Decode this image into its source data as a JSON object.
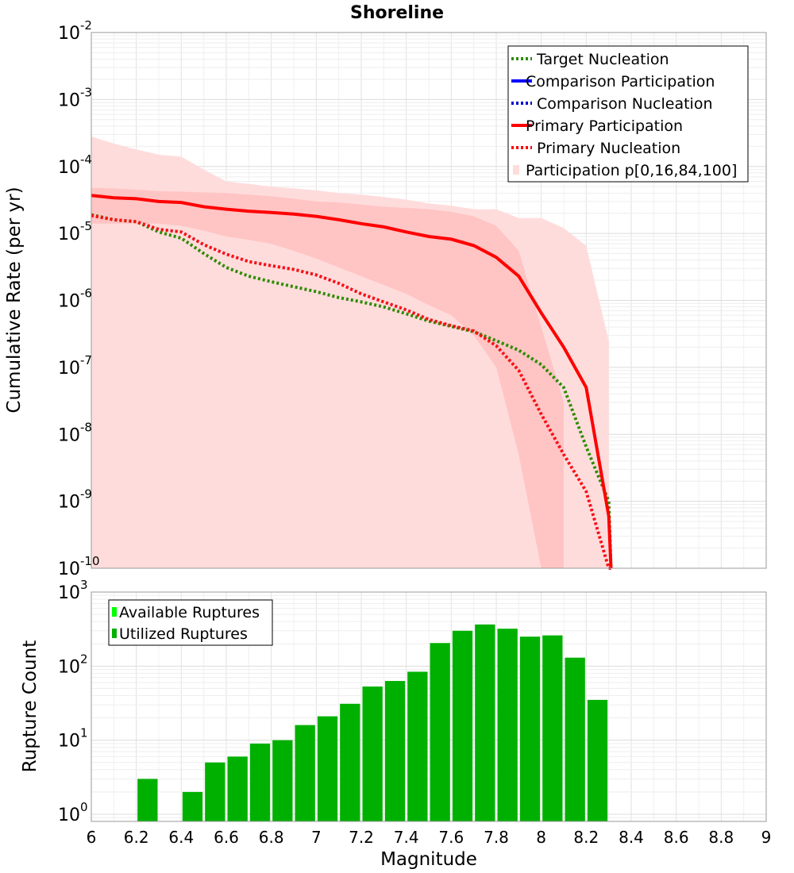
{
  "chart_data": [
    {
      "type": "line",
      "title": "Shoreline",
      "xlabel": "",
      "ylabel": "Cumulative Rate (per yr)",
      "yscale": "log",
      "xlim": [
        6,
        9
      ],
      "ylim": [
        1e-10,
        0.01
      ],
      "y_tick_exponents": [
        -2,
        -3,
        -4,
        -5,
        -6,
        -7,
        -8,
        -9,
        -10
      ],
      "legend": [
        {
          "label": "Target Nucleation",
          "color": "#2e8b00",
          "style": "dotted"
        },
        {
          "label": "Comparison Participation",
          "color": "#0000ff",
          "style": "solid"
        },
        {
          "label": "Comparison Nucleation",
          "color": "#0000cc",
          "style": "dotted"
        },
        {
          "label": "Primary Participation",
          "color": "#ff0000",
          "style": "solid"
        },
        {
          "label": "Primary Nucleation",
          "color": "#ff0000",
          "style": "dotted"
        },
        {
          "label": "Participation p[0,16,84,100]",
          "color": "#ffdcdc",
          "style": "band"
        }
      ],
      "legend_position": "top-right",
      "series": [
        {
          "name": "Target Nucleation",
          "x": [
            6.0,
            6.1,
            6.2,
            6.3,
            6.4,
            6.5,
            6.6,
            6.7,
            6.8,
            6.9,
            7.0,
            7.1,
            7.2,
            7.3,
            7.4,
            7.5,
            7.6,
            7.7,
            7.8,
            7.9,
            8.0,
            8.1,
            8.2,
            8.3,
            8.31
          ],
          "y": [
            1.9e-05,
            1.6e-05,
            1.5e-05,
            1.05e-05,
            8.5e-06,
            5e-06,
            3.1e-06,
            2.3e-06,
            1.9e-06,
            1.6e-06,
            1.35e-06,
            1.1e-06,
            9.5e-07,
            8e-07,
            6.3e-07,
            4.9e-07,
            4.1e-07,
            3.4e-07,
            2.5e-07,
            1.8e-07,
            1.1e-07,
            5e-08,
            6.5e-09,
            1e-09,
            5e-11
          ]
        },
        {
          "name": "Comparison Participation",
          "x": [
            6.0,
            6.1,
            6.2,
            6.3,
            6.4,
            6.5,
            6.6,
            6.7,
            6.8,
            6.9,
            7.0,
            7.1,
            7.2,
            7.3,
            7.4,
            7.5,
            7.6,
            7.7,
            7.8,
            7.9,
            8.0,
            8.1,
            8.2,
            8.3,
            8.31
          ],
          "y": [
            3.7e-05,
            3.4e-05,
            3.3e-05,
            3e-05,
            2.9e-05,
            2.5e-05,
            2.3e-05,
            2.15e-05,
            2.05e-05,
            1.95e-05,
            1.8e-05,
            1.6e-05,
            1.4e-05,
            1.25e-05,
            1.05e-05,
            9e-06,
            8.2e-06,
            6.6e-06,
            4.4e-06,
            2.3e-06,
            6.5e-07,
            2e-07,
            5e-08,
            6e-10,
            5e-11
          ]
        },
        {
          "name": "Comparison Nucleation",
          "x": [
            6.0,
            6.1,
            6.2,
            6.3,
            6.4,
            6.5,
            6.6,
            6.7,
            6.8,
            6.9,
            7.0,
            7.1,
            7.2,
            7.3,
            7.4,
            7.5,
            7.6,
            7.7,
            7.8,
            7.9,
            8.0,
            8.1,
            8.2,
            8.3,
            8.31
          ],
          "y": [
            1.85e-05,
            1.6e-05,
            1.5e-05,
            1.15e-05,
            1.05e-05,
            6.8e-06,
            4.9e-06,
            3.8e-06,
            3.3e-06,
            2.9e-06,
            2.4e-06,
            1.8e-06,
            1.25e-06,
            9.5e-07,
            7.2e-07,
            5.2e-07,
            4.2e-07,
            3.5e-07,
            2.1e-07,
            9e-08,
            2e-08,
            5e-09,
            1.4e-09,
            5e-11,
            5e-11
          ]
        },
        {
          "name": "Primary Participation",
          "x": [
            6.0,
            6.1,
            6.2,
            6.3,
            6.4,
            6.5,
            6.6,
            6.7,
            6.8,
            6.9,
            7.0,
            7.1,
            7.2,
            7.3,
            7.4,
            7.5,
            7.6,
            7.7,
            7.8,
            7.9,
            8.0,
            8.1,
            8.2,
            8.3,
            8.31
          ],
          "y": [
            3.7e-05,
            3.4e-05,
            3.3e-05,
            3e-05,
            2.9e-05,
            2.5e-05,
            2.3e-05,
            2.15e-05,
            2.05e-05,
            1.95e-05,
            1.8e-05,
            1.6e-05,
            1.4e-05,
            1.25e-05,
            1.05e-05,
            9e-06,
            8.2e-06,
            6.6e-06,
            4.4e-06,
            2.3e-06,
            6.5e-07,
            2e-07,
            5e-08,
            6e-10,
            5e-11
          ]
        },
        {
          "name": "Primary Nucleation",
          "x": [
            6.0,
            6.1,
            6.2,
            6.3,
            6.4,
            6.5,
            6.6,
            6.7,
            6.8,
            6.9,
            7.0,
            7.1,
            7.2,
            7.3,
            7.4,
            7.5,
            7.6,
            7.7,
            7.8,
            7.9,
            8.0,
            8.1,
            8.2,
            8.3,
            8.31
          ],
          "y": [
            1.85e-05,
            1.6e-05,
            1.5e-05,
            1.15e-05,
            1.05e-05,
            6.8e-06,
            4.9e-06,
            3.8e-06,
            3.3e-06,
            2.9e-06,
            2.4e-06,
            1.8e-06,
            1.25e-06,
            9.5e-07,
            7.2e-07,
            5.2e-07,
            4.2e-07,
            3.5e-07,
            2.1e-07,
            9e-08,
            2e-08,
            5e-09,
            1.4e-09,
            5e-11,
            5e-11
          ]
        }
      ],
      "bands": [
        {
          "name": "Participation p[0,100]",
          "x": [
            6.0,
            6.1,
            6.2,
            6.3,
            6.4,
            6.5,
            6.6,
            6.7,
            6.8,
            6.9,
            7.0,
            7.1,
            7.2,
            7.3,
            7.4,
            7.5,
            7.6,
            7.7,
            7.8,
            7.9,
            8.0,
            8.1,
            8.2,
            8.3
          ],
          "lower": [
            1e-10,
            1e-10,
            1e-10,
            1e-10,
            1e-10,
            1e-10,
            1e-10,
            1e-10,
            1e-10,
            1e-10,
            1e-10,
            1e-10,
            1e-10,
            1e-10,
            1e-10,
            1e-10,
            1e-10,
            1e-10,
            1e-10,
            1e-10,
            1e-10,
            1e-10,
            1e-10,
            1e-10
          ],
          "upper": [
            0.00028,
            0.00022,
            0.00018,
            0.00015,
            0.00014,
            9e-05,
            6e-05,
            5.5e-05,
            5e-05,
            4.7e-05,
            4.4e-05,
            4e-05,
            3.8e-05,
            3.5e-05,
            3.2e-05,
            2.8e-05,
            2.6e-05,
            2.3e-05,
            2.3e-05,
            1.7e-05,
            1.7e-05,
            1.2e-05,
            6.5e-06,
            2.5e-07
          ]
        },
        {
          "name": "Participation p[16,84]",
          "x": [
            6.0,
            6.1,
            6.2,
            6.3,
            6.4,
            6.5,
            6.6,
            6.7,
            6.8,
            6.9,
            7.0,
            7.1,
            7.2,
            7.3,
            7.4,
            7.5,
            7.6,
            7.7,
            7.8,
            7.9,
            8.0,
            8.1
          ],
          "lower": [
            1.4e-05,
            1.4e-05,
            1.4e-05,
            1.4e-05,
            1.3e-05,
            1.1e-05,
            9e-06,
            8e-06,
            7e-06,
            5.5e-06,
            4.2e-06,
            3.1e-06,
            2.3e-06,
            1.7e-06,
            1.25e-06,
            8.5e-07,
            6e-07,
            3e-07,
            1e-07,
            5e-09,
            1e-10,
            1e-10
          ],
          "upper": [
            4.8e-05,
            4.7e-05,
            4.5e-05,
            4.3e-05,
            4.2e-05,
            4.1e-05,
            4e-05,
            3.8e-05,
            3.6e-05,
            3.3e-05,
            3e-05,
            2.9e-05,
            2.7e-05,
            2.5e-05,
            2.4e-05,
            2.3e-05,
            2.1e-05,
            1.8e-05,
            1.3e-05,
            5.5e-06,
            4e-07,
            3e-08
          ]
        }
      ]
    },
    {
      "type": "bar",
      "title": "",
      "xlabel": "Magnitude",
      "ylabel": "Rupture Count",
      "yscale": "log",
      "xlim": [
        6,
        9
      ],
      "ylim": [
        0.8,
        1000
      ],
      "x_ticks": [
        "6",
        "6.2",
        "6.4",
        "6.6",
        "6.8",
        "7",
        "7.2",
        "7.4",
        "7.6",
        "7.8",
        "8",
        "8.2",
        "8.4",
        "8.6",
        "8.8",
        "9"
      ],
      "y_tick_exponents": [
        3,
        2,
        1,
        0
      ],
      "bin_width": 0.1,
      "legend": [
        {
          "label": "Available Ruptures",
          "color": "#00ff00"
        },
        {
          "label": "Utilized Ruptures",
          "color": "#00b000"
        }
      ],
      "legend_position": "top-left",
      "series": [
        {
          "name": "Utilized Ruptures",
          "x": [
            6.25,
            6.45,
            6.55,
            6.65,
            6.75,
            6.85,
            6.95,
            7.05,
            7.15,
            7.25,
            7.35,
            7.45,
            7.55,
            7.65,
            7.75,
            7.85,
            7.95,
            8.05,
            8.15,
            8.25
          ],
          "values": [
            3,
            2,
            5,
            6,
            9,
            10,
            16,
            21,
            31,
            53,
            63,
            84,
            205,
            300,
            365,
            320,
            250,
            260,
            130,
            35
          ]
        }
      ]
    }
  ]
}
